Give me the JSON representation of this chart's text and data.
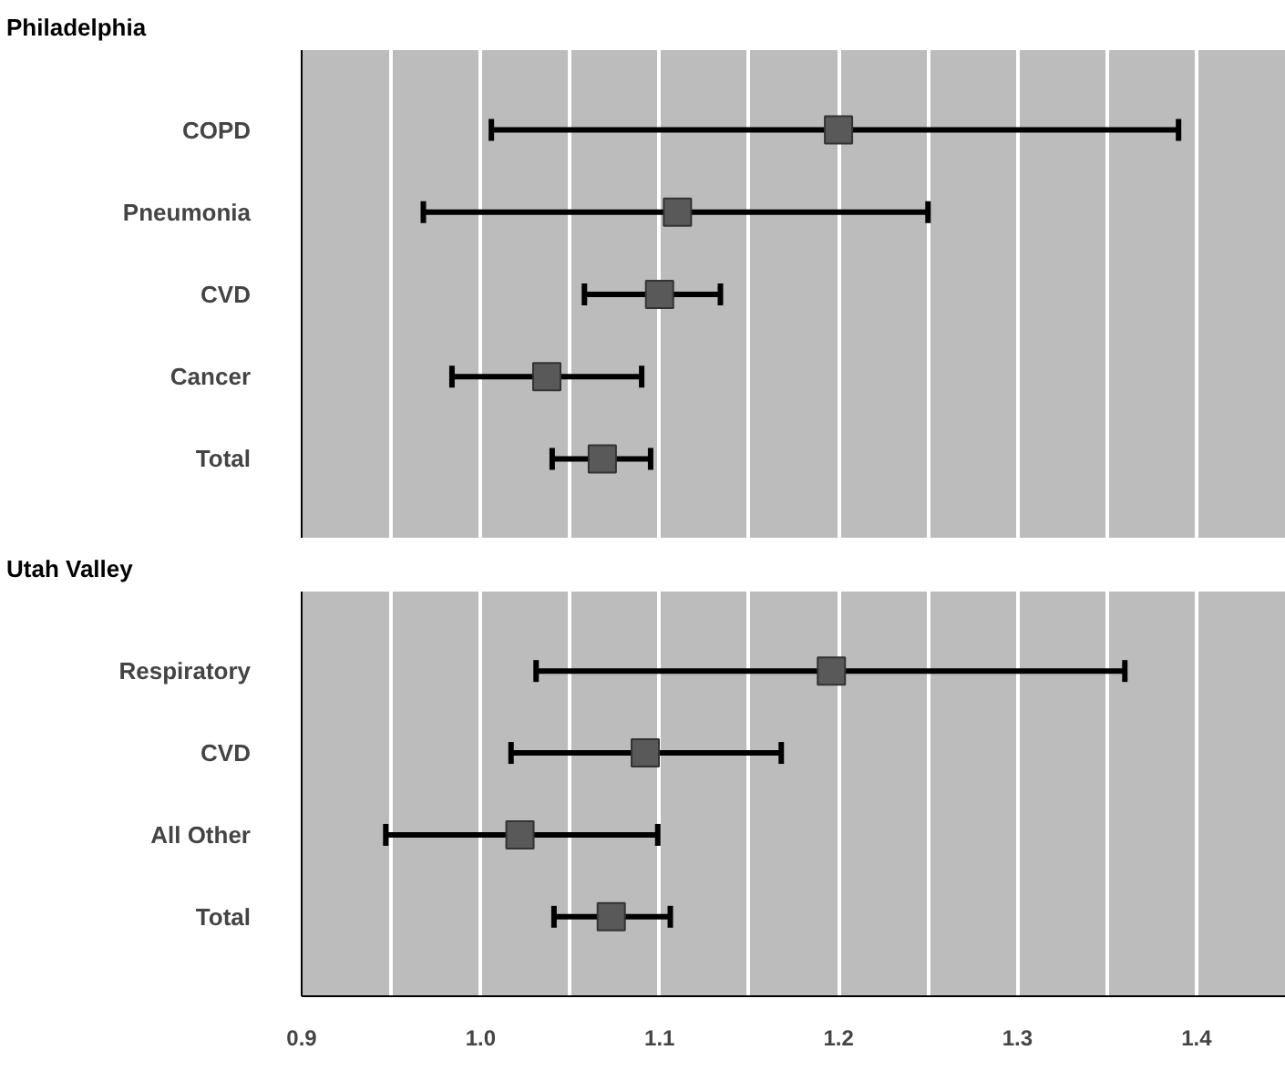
{
  "chart_data": [
    {
      "type": "scatter",
      "orientation": "horizontal",
      "title": "Philadelphia",
      "categories": [
        "COPD",
        "Pneumonia",
        "CVD",
        "Cancer",
        "Total"
      ],
      "series": [
        {
          "color": "#595959",
          "values": [
            1.2,
            1.11,
            1.1,
            1.037,
            1.068
          ],
          "errors": [
            [
              1.006,
              1.39
            ],
            [
              0.968,
              1.25
            ],
            [
              1.058,
              1.134
            ],
            [
              0.984,
              1.09
            ],
            [
              1.04,
              1.095
            ]
          ]
        }
      ],
      "xlim": [
        0.9,
        1.45
      ],
      "xticks": [
        0.9,
        {
          "value": 0.95,
          "label": null
        },
        1.0,
        {
          "value": 1.05,
          "label": null
        },
        1.1,
        {
          "value": 1.15,
          "label": null
        },
        1.2,
        {
          "value": 1.25,
          "label": null
        },
        1.3,
        {
          "value": 1.35,
          "label": null
        },
        1.4,
        {
          "value": 1.45,
          "label": null
        }
      ],
      "grid": "x",
      "marker": "square",
      "tick_labels": "y"
    },
    {
      "type": "scatter",
      "orientation": "horizontal",
      "title": "Utah Valley",
      "categories": [
        "Respiratory",
        "CVD",
        "All Other",
        "Total"
      ],
      "series": [
        {
          "color": "#595959",
          "values": [
            1.196,
            1.092,
            1.022,
            1.073
          ],
          "errors": [
            [
              1.031,
              1.36
            ],
            [
              1.017,
              1.168
            ],
            [
              0.947,
              1.099
            ],
            [
              1.041,
              1.106
            ]
          ]
        }
      ],
      "xlim": [
        0.9,
        1.45
      ],
      "xticks": [
        0.9,
        {
          "value": 0.95,
          "label": null
        },
        {
          "value": 1.0,
          "label": "1.0"
        },
        {
          "value": 1.05,
          "label": null
        },
        1.1,
        {
          "value": 1.15,
          "label": null
        },
        1.2,
        {
          "value": 1.25,
          "label": null
        },
        1.3,
        {
          "value": 1.35,
          "label": null
        },
        1.4,
        {
          "value": 1.45,
          "label": null
        }
      ],
      "grid": "x",
      "marker": "square"
    }
  ]
}
